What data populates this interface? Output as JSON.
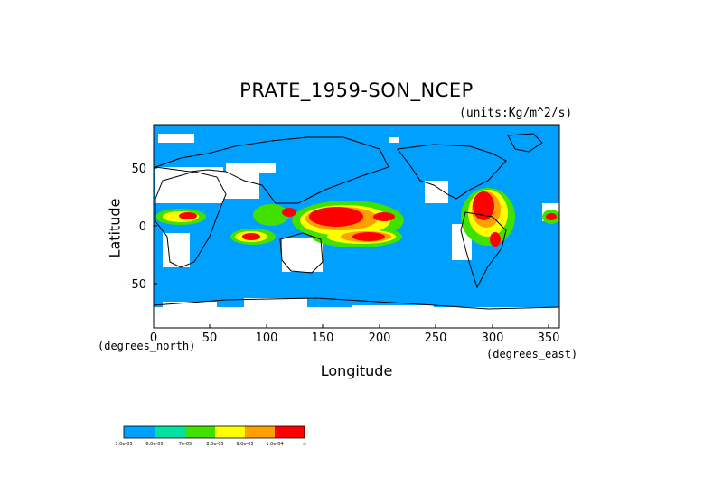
{
  "title": "PRATE_1959-SON_NCEP",
  "units": "(units:Kg/m^2/s)",
  "x_axis": {
    "label": "Longitude",
    "sublabel": "(degrees_east)",
    "ticks": [
      "0",
      "50",
      "100",
      "150",
      "200",
      "250",
      "300",
      "350"
    ]
  },
  "y_axis": {
    "label": "Latitude",
    "sublabel": "(degrees_north)",
    "ticks": [
      "50",
      "0",
      "-50"
    ]
  },
  "colorbar": {
    "colors": [
      "#00a0ff",
      "#00e0a0",
      "#40e000",
      "#ffff00",
      "#ffa000",
      "#ff0000"
    ],
    "labels": [
      "3.0e-05",
      "6.0e-05",
      "7e-05",
      "8.0e-05",
      "9.0e-05",
      "1.0e-04",
      "∞"
    ]
  },
  "map": {
    "ocean_color": "#00a0ff",
    "land_color": "#00a0ff",
    "missing_color": "#ffffff"
  }
}
